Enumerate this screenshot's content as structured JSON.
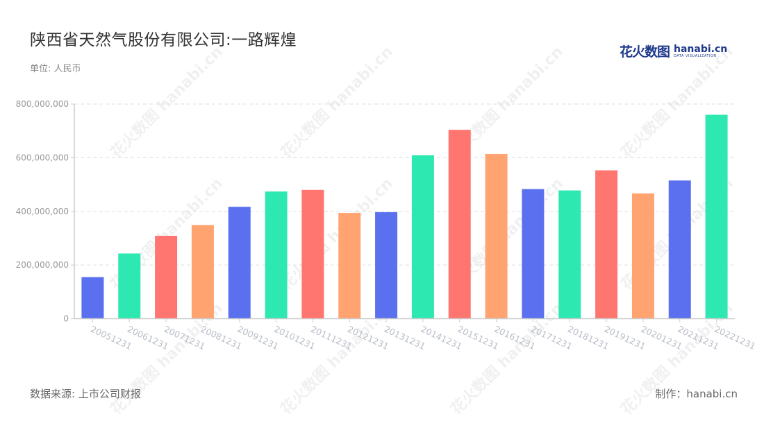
{
  "header": {
    "title": "陕西省天然气股份有限公司:一路辉煌",
    "unit": "单位: 人民币"
  },
  "brand": {
    "cn": "花火数图",
    "en": "hanabi.cn",
    "sub": "DATA VISUALIZATION"
  },
  "footer": {
    "source": "数据来源: 上市公司财报",
    "credit": "制作：hanabi.cn"
  },
  "watermark": "花火数图 hanabi.cn",
  "colors": {
    "blue": "#5A70EE",
    "green": "#2EE8B2",
    "red": "#FF7670",
    "orange": "#FFA371",
    "axis": "#cccccc",
    "grid": "#dddddd",
    "tick_label": "#999999",
    "x_label": "#b8bcc8"
  },
  "chart_data": {
    "type": "bar",
    "title": "陕西省天然气股份有限公司:一路辉煌",
    "xlabel": "",
    "ylabel": "单位: 人民币",
    "ylim": [
      0,
      800000000
    ],
    "yticks": [
      0,
      200000000,
      400000000,
      600000000,
      800000000
    ],
    "ytick_labels": [
      "0",
      "200,000,000",
      "400,000,000",
      "600,000,000",
      "800,000,000"
    ],
    "grid": true,
    "legend": null,
    "categories": [
      "20051231",
      "20061231",
      "20071231",
      "20081231",
      "20091231",
      "20101231",
      "20111231",
      "20121231",
      "20131231",
      "20141231",
      "20151231",
      "20161231",
      "20171231",
      "20181231",
      "20191231",
      "20201231",
      "20211231",
      "20221231"
    ],
    "values": [
      155000000,
      243000000,
      309000000,
      349000000,
      417000000,
      474000000,
      480000000,
      394000000,
      397000000,
      609000000,
      704000000,
      614000000,
      483000000,
      478000000,
      553000000,
      467000000,
      515000000,
      760000000
    ],
    "bar_colors": [
      "#5A70EE",
      "#2EE8B2",
      "#FF7670",
      "#FFA371",
      "#5A70EE",
      "#2EE8B2",
      "#FF7670",
      "#FFA371",
      "#5A70EE",
      "#2EE8B2",
      "#FF7670",
      "#FFA371",
      "#5A70EE",
      "#2EE8B2",
      "#FF7670",
      "#FFA371",
      "#5A70EE",
      "#2EE8B2"
    ]
  }
}
